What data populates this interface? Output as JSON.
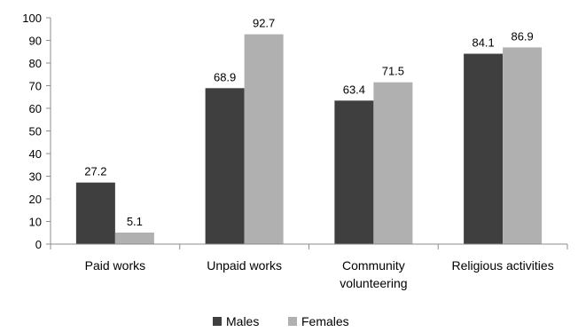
{
  "chart_data": {
    "type": "bar",
    "categories": [
      [
        "Paid works"
      ],
      [
        "Unpaid works"
      ],
      [
        "Community",
        "volunteering"
      ],
      [
        "Religious activities"
      ]
    ],
    "series": [
      {
        "name": "Males",
        "values": [
          27.2,
          68.9,
          63.4,
          84.1
        ],
        "color": "#3f3f3f"
      },
      {
        "name": "Females",
        "values": [
          5.1,
          92.7,
          71.5,
          86.9
        ],
        "color": "#b0b0b0"
      }
    ],
    "y_ticks": [
      "0",
      "10",
      "20",
      "30",
      "40",
      "50",
      "60",
      "70",
      "80",
      "90",
      "100"
    ],
    "ylim": [
      0,
      100
    ],
    "grid": false,
    "legend_position": "bottom",
    "data_labels": true
  }
}
